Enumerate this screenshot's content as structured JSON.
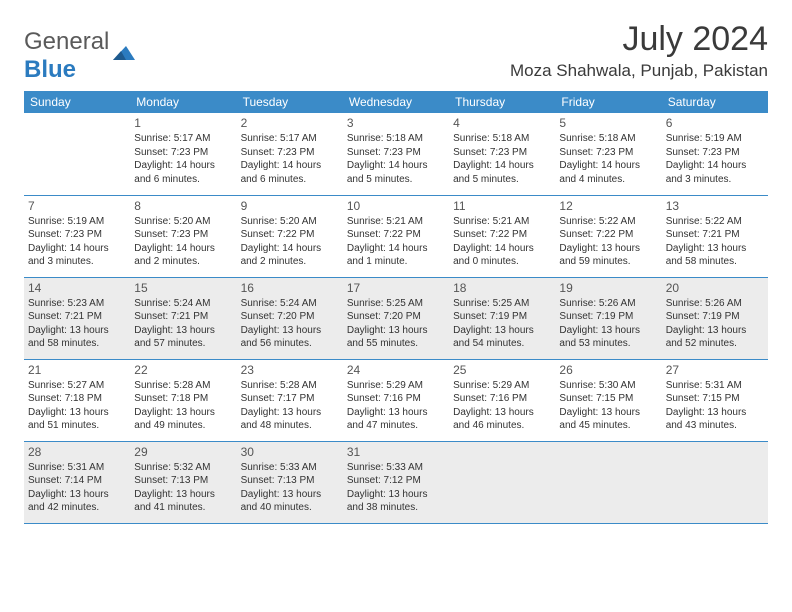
{
  "brand": {
    "text1": "General",
    "text2": "Blue"
  },
  "title": "July 2024",
  "location": "Moza Shahwala, Punjab, Pakistan",
  "colors": {
    "header_bg": "#3b8bc8",
    "shaded_bg": "#ececec",
    "border": "#3b8bc8",
    "text": "#333333",
    "logo_gray": "#5a5a5a",
    "logo_blue": "#2b7bbf"
  },
  "day_headers": [
    "Sunday",
    "Monday",
    "Tuesday",
    "Wednesday",
    "Thursday",
    "Friday",
    "Saturday"
  ],
  "weeks": [
    {
      "shaded": false,
      "days": [
        null,
        {
          "n": "1",
          "sr": "5:17 AM",
          "ss": "7:23 PM",
          "dl": "14 hours and 6 minutes."
        },
        {
          "n": "2",
          "sr": "5:17 AM",
          "ss": "7:23 PM",
          "dl": "14 hours and 6 minutes."
        },
        {
          "n": "3",
          "sr": "5:18 AM",
          "ss": "7:23 PM",
          "dl": "14 hours and 5 minutes."
        },
        {
          "n": "4",
          "sr": "5:18 AM",
          "ss": "7:23 PM",
          "dl": "14 hours and 5 minutes."
        },
        {
          "n": "5",
          "sr": "5:18 AM",
          "ss": "7:23 PM",
          "dl": "14 hours and 4 minutes."
        },
        {
          "n": "6",
          "sr": "5:19 AM",
          "ss": "7:23 PM",
          "dl": "14 hours and 3 minutes."
        }
      ]
    },
    {
      "shaded": false,
      "days": [
        {
          "n": "7",
          "sr": "5:19 AM",
          "ss": "7:23 PM",
          "dl": "14 hours and 3 minutes."
        },
        {
          "n": "8",
          "sr": "5:20 AM",
          "ss": "7:23 PM",
          "dl": "14 hours and 2 minutes."
        },
        {
          "n": "9",
          "sr": "5:20 AM",
          "ss": "7:22 PM",
          "dl": "14 hours and 2 minutes."
        },
        {
          "n": "10",
          "sr": "5:21 AM",
          "ss": "7:22 PM",
          "dl": "14 hours and 1 minute."
        },
        {
          "n": "11",
          "sr": "5:21 AM",
          "ss": "7:22 PM",
          "dl": "14 hours and 0 minutes."
        },
        {
          "n": "12",
          "sr": "5:22 AM",
          "ss": "7:22 PM",
          "dl": "13 hours and 59 minutes."
        },
        {
          "n": "13",
          "sr": "5:22 AM",
          "ss": "7:21 PM",
          "dl": "13 hours and 58 minutes."
        }
      ]
    },
    {
      "shaded": true,
      "days": [
        {
          "n": "14",
          "sr": "5:23 AM",
          "ss": "7:21 PM",
          "dl": "13 hours and 58 minutes."
        },
        {
          "n": "15",
          "sr": "5:24 AM",
          "ss": "7:21 PM",
          "dl": "13 hours and 57 minutes."
        },
        {
          "n": "16",
          "sr": "5:24 AM",
          "ss": "7:20 PM",
          "dl": "13 hours and 56 minutes."
        },
        {
          "n": "17",
          "sr": "5:25 AM",
          "ss": "7:20 PM",
          "dl": "13 hours and 55 minutes."
        },
        {
          "n": "18",
          "sr": "5:25 AM",
          "ss": "7:19 PM",
          "dl": "13 hours and 54 minutes."
        },
        {
          "n": "19",
          "sr": "5:26 AM",
          "ss": "7:19 PM",
          "dl": "13 hours and 53 minutes."
        },
        {
          "n": "20",
          "sr": "5:26 AM",
          "ss": "7:19 PM",
          "dl": "13 hours and 52 minutes."
        }
      ]
    },
    {
      "shaded": false,
      "days": [
        {
          "n": "21",
          "sr": "5:27 AM",
          "ss": "7:18 PM",
          "dl": "13 hours and 51 minutes."
        },
        {
          "n": "22",
          "sr": "5:28 AM",
          "ss": "7:18 PM",
          "dl": "13 hours and 49 minutes."
        },
        {
          "n": "23",
          "sr": "5:28 AM",
          "ss": "7:17 PM",
          "dl": "13 hours and 48 minutes."
        },
        {
          "n": "24",
          "sr": "5:29 AM",
          "ss": "7:16 PM",
          "dl": "13 hours and 47 minutes."
        },
        {
          "n": "25",
          "sr": "5:29 AM",
          "ss": "7:16 PM",
          "dl": "13 hours and 46 minutes."
        },
        {
          "n": "26",
          "sr": "5:30 AM",
          "ss": "7:15 PM",
          "dl": "13 hours and 45 minutes."
        },
        {
          "n": "27",
          "sr": "5:31 AM",
          "ss": "7:15 PM",
          "dl": "13 hours and 43 minutes."
        }
      ]
    },
    {
      "shaded": true,
      "days": [
        {
          "n": "28",
          "sr": "5:31 AM",
          "ss": "7:14 PM",
          "dl": "13 hours and 42 minutes."
        },
        {
          "n": "29",
          "sr": "5:32 AM",
          "ss": "7:13 PM",
          "dl": "13 hours and 41 minutes."
        },
        {
          "n": "30",
          "sr": "5:33 AM",
          "ss": "7:13 PM",
          "dl": "13 hours and 40 minutes."
        },
        {
          "n": "31",
          "sr": "5:33 AM",
          "ss": "7:12 PM",
          "dl": "13 hours and 38 minutes."
        },
        null,
        null,
        null
      ]
    }
  ],
  "labels": {
    "sunrise": "Sunrise:",
    "sunset": "Sunset:",
    "daylight": "Daylight:"
  }
}
